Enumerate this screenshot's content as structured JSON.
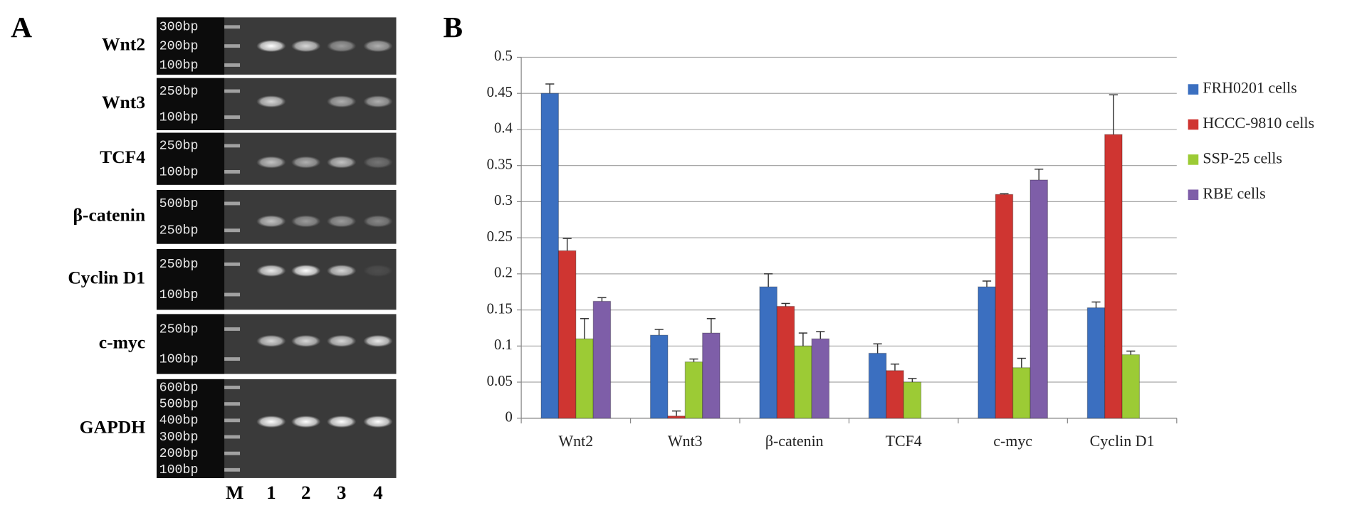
{
  "panel_a": {
    "label": "A",
    "genes": [
      {
        "name": "Wnt2",
        "ladder": [
          "300bp",
          "200bp",
          "100bp"
        ]
      },
      {
        "name": "Wnt3",
        "ladder": [
          "250bp",
          "100bp"
        ]
      },
      {
        "name": "TCF4",
        "ladder": [
          "250bp",
          "100bp"
        ]
      },
      {
        "name": "β-catenin",
        "ladder": [
          "500bp",
          "250bp"
        ]
      },
      {
        "name": "Cyclin D1",
        "ladder": [
          "250bp",
          "100bp"
        ]
      },
      {
        "name": "c-myc",
        "ladder": [
          "250bp",
          "100bp"
        ]
      },
      {
        "name": "GAPDH",
        "ladder": [
          "600bp",
          "500bp",
          "400bp",
          "300bp",
          "200bp",
          "100bp"
        ]
      }
    ],
    "lanes": [
      "M",
      "1",
      "2",
      "3",
      "4"
    ]
  },
  "chart_data": {
    "type": "bar",
    "label": "B",
    "categories": [
      "Wnt2",
      "Wnt3",
      "β-catenin",
      "TCF4",
      "c-myc",
      "Cyclin D1"
    ],
    "series": [
      {
        "name": "FRH0201 cells",
        "color": "#3b6fc0",
        "values": [
          0.45,
          0.115,
          0.182,
          0.09,
          0.182,
          0.153
        ],
        "errors": [
          0.013,
          0.008,
          0.018,
          0.013,
          0.008,
          0.008
        ]
      },
      {
        "name": "HCCC-9810 cells",
        "color": "#cf3531",
        "values": [
          0.232,
          0.003,
          0.155,
          0.066,
          0.31,
          0.393
        ],
        "errors": [
          0.017,
          0.007,
          0.004,
          0.009,
          0.001,
          0.055
        ]
      },
      {
        "name": "SSP-25 cells",
        "color": "#9ccb35",
        "values": [
          0.11,
          0.078,
          0.1,
          0.05,
          0.07,
          0.088
        ],
        "errors": [
          0.028,
          0.004,
          0.018,
          0.005,
          0.013,
          0.005
        ]
      },
      {
        "name": "RBE cells",
        "color": "#7e5ea8",
        "values": [
          0.162,
          0.118,
          0.11,
          null,
          0.33,
          null
        ],
        "errors": [
          0.005,
          0.02,
          0.01,
          null,
          0.015,
          null
        ]
      }
    ],
    "ylim": [
      0,
      0.5
    ],
    "yticks": [
      0,
      0.05,
      0.1,
      0.15,
      0.2,
      0.25,
      0.3,
      0.35,
      0.4,
      0.45,
      0.5
    ],
    "grid": true,
    "legend": "right"
  }
}
